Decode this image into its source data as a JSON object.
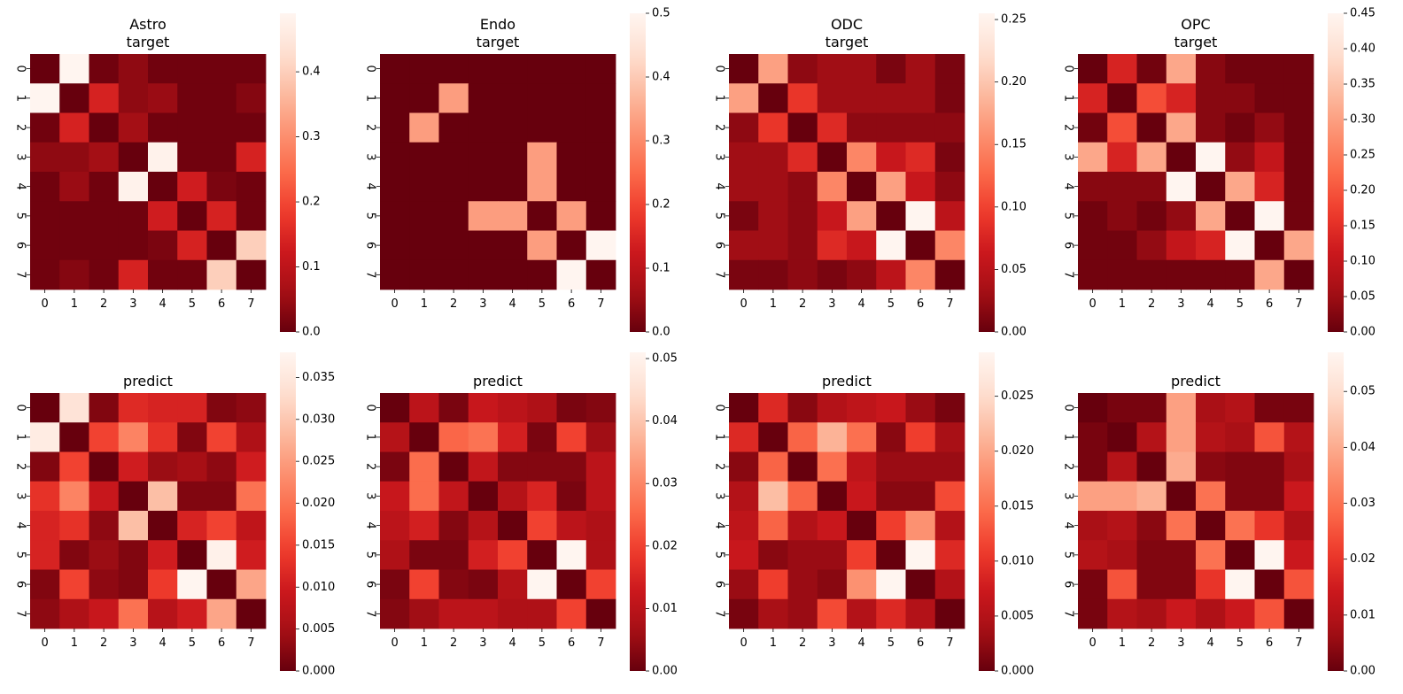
{
  "chart_data": [
    {
      "type": "heatmap",
      "title_lines": [
        "Astro",
        "target"
      ],
      "x_ticks": [
        "0",
        "1",
        "2",
        "3",
        "4",
        "5",
        "6",
        "7"
      ],
      "y_ticks": [
        "0",
        "1",
        "2",
        "3",
        "4",
        "5",
        "6",
        "7"
      ],
      "vmin": 0,
      "vmax": 0.49,
      "colorbar_ticks": [
        "0.0",
        "0.1",
        "0.2",
        "0.3",
        "0.4"
      ],
      "colorbar_values": [
        0,
        0.1,
        0.2,
        0.3,
        0.4
      ],
      "values": [
        [
          0.0,
          0.49,
          0.01,
          0.04,
          0.01,
          0.01,
          0.01,
          0.01
        ],
        [
          0.49,
          0.0,
          0.14,
          0.04,
          0.05,
          0.01,
          0.01,
          0.03
        ],
        [
          0.01,
          0.14,
          0.0,
          0.06,
          0.01,
          0.01,
          0.01,
          0.01
        ],
        [
          0.04,
          0.04,
          0.06,
          0.0,
          0.48,
          0.01,
          0.01,
          0.14
        ],
        [
          0.01,
          0.05,
          0.01,
          0.48,
          0.0,
          0.13,
          0.02,
          0.01
        ],
        [
          0.01,
          0.01,
          0.01,
          0.01,
          0.13,
          0.0,
          0.14,
          0.01
        ],
        [
          0.01,
          0.01,
          0.01,
          0.01,
          0.02,
          0.14,
          0.0,
          0.4
        ],
        [
          0.01,
          0.03,
          0.01,
          0.14,
          0.01,
          0.01,
          0.4,
          0.0
        ]
      ]
    },
    {
      "type": "heatmap",
      "title_lines": [
        "Endo",
        "target"
      ],
      "x_ticks": [
        "0",
        "1",
        "2",
        "3",
        "4",
        "5",
        "6",
        "7"
      ],
      "y_ticks": [
        "0",
        "1",
        "2",
        "3",
        "4",
        "5",
        "6",
        "7"
      ],
      "vmin": 0,
      "vmax": 0.5,
      "colorbar_ticks": [
        "0.0",
        "0.1",
        "0.2",
        "0.3",
        "0.4",
        "0.5"
      ],
      "colorbar_values": [
        0,
        0.1,
        0.2,
        0.3,
        0.4,
        0.5
      ],
      "values": [
        [
          0,
          0,
          0,
          0,
          0,
          0,
          0,
          0
        ],
        [
          0,
          0,
          0.33,
          0,
          0,
          0,
          0,
          0
        ],
        [
          0,
          0.33,
          0,
          0,
          0,
          0,
          0,
          0
        ],
        [
          0,
          0,
          0,
          0,
          0,
          0.33,
          0,
          0
        ],
        [
          0,
          0,
          0,
          0,
          0,
          0.33,
          0,
          0
        ],
        [
          0,
          0,
          0,
          0.33,
          0.33,
          0,
          0.33,
          0
        ],
        [
          0,
          0,
          0,
          0,
          0,
          0.33,
          0,
          0.5
        ],
        [
          0,
          0,
          0,
          0,
          0,
          0,
          0.5,
          0
        ]
      ]
    },
    {
      "type": "heatmap",
      "title_lines": [
        "ODC",
        "target"
      ],
      "x_ticks": [
        "0",
        "1",
        "2",
        "3",
        "4",
        "5",
        "6",
        "7"
      ],
      "y_ticks": [
        "0",
        "1",
        "2",
        "3",
        "4",
        "5",
        "6",
        "7"
      ],
      "vmin": 0,
      "vmax": 0.255,
      "colorbar_ticks": [
        "0.00",
        "0.05",
        "0.10",
        "0.15",
        "0.20",
        "0.25"
      ],
      "colorbar_values": [
        0,
        0.05,
        0.1,
        0.15,
        0.2,
        0.25
      ],
      "values": [
        [
          0.0,
          0.17,
          0.02,
          0.03,
          0.03,
          0.01,
          0.03,
          0.01
        ],
        [
          0.17,
          0.0,
          0.09,
          0.03,
          0.03,
          0.03,
          0.03,
          0.01
        ],
        [
          0.02,
          0.09,
          0.0,
          0.08,
          0.02,
          0.02,
          0.02,
          0.02
        ],
        [
          0.03,
          0.03,
          0.08,
          0.0,
          0.15,
          0.06,
          0.08,
          0.01
        ],
        [
          0.03,
          0.03,
          0.02,
          0.15,
          0.0,
          0.17,
          0.06,
          0.02
        ],
        [
          0.01,
          0.03,
          0.02,
          0.06,
          0.17,
          0.0,
          0.255,
          0.05
        ],
        [
          0.03,
          0.03,
          0.02,
          0.08,
          0.06,
          0.255,
          0.0,
          0.15
        ],
        [
          0.01,
          0.01,
          0.02,
          0.01,
          0.02,
          0.05,
          0.15,
          0.0
        ]
      ]
    },
    {
      "type": "heatmap",
      "title_lines": [
        "OPC",
        "target"
      ],
      "x_ticks": [
        "0",
        "1",
        "2",
        "3",
        "4",
        "5",
        "6",
        "7"
      ],
      "y_ticks": [
        "0",
        "1",
        "2",
        "3",
        "4",
        "5",
        "6",
        "7"
      ],
      "vmin": 0,
      "vmax": 0.45,
      "colorbar_ticks": [
        "0.00",
        "0.05",
        "0.10",
        "0.15",
        "0.20",
        "0.25",
        "0.30",
        "0.35",
        "0.40",
        "0.45"
      ],
      "colorbar_values": [
        0,
        0.05,
        0.1,
        0.15,
        0.2,
        0.25,
        0.3,
        0.35,
        0.4,
        0.45
      ],
      "values": [
        [
          0.0,
          0.13,
          0.01,
          0.31,
          0.03,
          0.01,
          0.01,
          0.01
        ],
        [
          0.13,
          0.0,
          0.19,
          0.13,
          0.03,
          0.03,
          0.01,
          0.01
        ],
        [
          0.01,
          0.19,
          0.0,
          0.31,
          0.03,
          0.01,
          0.04,
          0.01
        ],
        [
          0.31,
          0.13,
          0.31,
          0.0,
          0.45,
          0.04,
          0.1,
          0.01
        ],
        [
          0.03,
          0.03,
          0.03,
          0.45,
          0.0,
          0.31,
          0.13,
          0.01
        ],
        [
          0.01,
          0.03,
          0.01,
          0.04,
          0.31,
          0.0,
          0.45,
          0.01
        ],
        [
          0.01,
          0.01,
          0.04,
          0.1,
          0.13,
          0.45,
          0.0,
          0.31
        ],
        [
          0.01,
          0.01,
          0.01,
          0.01,
          0.01,
          0.01,
          0.31,
          0.0
        ]
      ]
    },
    {
      "type": "heatmap",
      "title_lines": [
        "predict"
      ],
      "x_ticks": [
        "0",
        "1",
        "2",
        "3",
        "4",
        "5",
        "6",
        "7"
      ],
      "y_ticks": [
        "0",
        "1",
        "2",
        "3",
        "4",
        "5",
        "6",
        "7"
      ],
      "vmin": 0,
      "vmax": 0.038,
      "colorbar_ticks": [
        "0.000",
        "0.005",
        "0.010",
        "0.015",
        "0.020",
        "0.025",
        "0.030",
        "0.035"
      ],
      "colorbar_values": [
        0,
        0.005,
        0.01,
        0.015,
        0.02,
        0.025,
        0.03,
        0.035
      ],
      "values": [
        [
          0.0,
          0.034,
          0.002,
          0.012,
          0.011,
          0.011,
          0.002,
          0.003
        ],
        [
          0.036,
          0.0,
          0.015,
          0.022,
          0.013,
          0.002,
          0.015,
          0.006
        ],
        [
          0.002,
          0.015,
          0.0,
          0.01,
          0.004,
          0.005,
          0.003,
          0.01
        ],
        [
          0.013,
          0.022,
          0.009,
          0.0,
          0.029,
          0.002,
          0.002,
          0.02
        ],
        [
          0.011,
          0.013,
          0.003,
          0.029,
          0.0,
          0.011,
          0.015,
          0.008
        ],
        [
          0.011,
          0.002,
          0.004,
          0.002,
          0.01,
          0.0,
          0.037,
          0.01
        ],
        [
          0.002,
          0.015,
          0.003,
          0.002,
          0.014,
          0.038,
          0.0,
          0.026
        ],
        [
          0.003,
          0.006,
          0.009,
          0.02,
          0.007,
          0.01,
          0.026,
          0.0
        ]
      ]
    },
    {
      "type": "heatmap",
      "title_lines": [
        "predict"
      ],
      "x_ticks": [
        "0",
        "1",
        "2",
        "3",
        "4",
        "5",
        "6",
        "7"
      ],
      "y_ticks": [
        "0",
        "1",
        "2",
        "3",
        "4",
        "5",
        "6",
        "7"
      ],
      "vmin": 0,
      "vmax": 0.051,
      "colorbar_ticks": [
        "0.00",
        "0.01",
        "0.02",
        "0.03",
        "0.04",
        "0.05"
      ],
      "colorbar_values": [
        0,
        0.01,
        0.02,
        0.03,
        0.04,
        0.05
      ],
      "values": [
        [
          0.0,
          0.01,
          0.002,
          0.012,
          0.01,
          0.008,
          0.002,
          0.003
        ],
        [
          0.009,
          0.0,
          0.025,
          0.027,
          0.014,
          0.002,
          0.02,
          0.006
        ],
        [
          0.002,
          0.026,
          0.0,
          0.011,
          0.003,
          0.003,
          0.003,
          0.01
        ],
        [
          0.012,
          0.026,
          0.011,
          0.0,
          0.009,
          0.015,
          0.002,
          0.01
        ],
        [
          0.01,
          0.014,
          0.003,
          0.009,
          0.0,
          0.02,
          0.01,
          0.008
        ],
        [
          0.008,
          0.002,
          0.002,
          0.014,
          0.02,
          0.0,
          0.051,
          0.008
        ],
        [
          0.002,
          0.02,
          0.003,
          0.002,
          0.009,
          0.051,
          0.0,
          0.02
        ],
        [
          0.003,
          0.006,
          0.01,
          0.01,
          0.008,
          0.008,
          0.02,
          0.0
        ]
      ]
    },
    {
      "type": "heatmap",
      "title_lines": [
        "predict"
      ],
      "x_ticks": [
        "0",
        "1",
        "2",
        "3",
        "4",
        "5",
        "6",
        "7"
      ],
      "y_ticks": [
        "0",
        "1",
        "2",
        "3",
        "4",
        "5",
        "6",
        "7"
      ],
      "vmin": 0,
      "vmax": 0.029,
      "colorbar_ticks": [
        "0.000",
        "0.005",
        "0.010",
        "0.015",
        "0.020",
        "0.025"
      ],
      "colorbar_values": [
        0,
        0.005,
        0.01,
        0.015,
        0.02,
        0.025
      ],
      "values": [
        [
          0.0,
          0.009,
          0.002,
          0.005,
          0.006,
          0.007,
          0.003,
          0.001
        ],
        [
          0.009,
          0.0,
          0.014,
          0.021,
          0.015,
          0.002,
          0.011,
          0.004
        ],
        [
          0.002,
          0.014,
          0.0,
          0.015,
          0.006,
          0.003,
          0.003,
          0.003
        ],
        [
          0.005,
          0.022,
          0.014,
          0.0,
          0.007,
          0.002,
          0.002,
          0.012
        ],
        [
          0.006,
          0.014,
          0.005,
          0.007,
          0.0,
          0.011,
          0.018,
          0.005
        ],
        [
          0.007,
          0.002,
          0.003,
          0.003,
          0.011,
          0.0,
          0.029,
          0.009
        ],
        [
          0.003,
          0.011,
          0.003,
          0.002,
          0.018,
          0.029,
          0.0,
          0.005
        ],
        [
          0.001,
          0.004,
          0.003,
          0.012,
          0.005,
          0.009,
          0.005,
          0.0
        ]
      ]
    },
    {
      "type": "heatmap",
      "title_lines": [
        "predict"
      ],
      "x_ticks": [
        "0",
        "1",
        "2",
        "3",
        "4",
        "5",
        "6",
        "7"
      ],
      "y_ticks": [
        "0",
        "1",
        "2",
        "3",
        "4",
        "5",
        "6",
        "7"
      ],
      "vmin": 0,
      "vmax": 0.057,
      "colorbar_ticks": [
        "0.00",
        "0.01",
        "0.02",
        "0.03",
        "0.04",
        "0.05"
      ],
      "colorbar_values": [
        0,
        0.01,
        0.02,
        0.03,
        0.04,
        0.05
      ],
      "values": [
        [
          0.0,
          0.002,
          0.002,
          0.038,
          0.008,
          0.01,
          0.002,
          0.002
        ],
        [
          0.002,
          0.0,
          0.01,
          0.038,
          0.01,
          0.008,
          0.025,
          0.01
        ],
        [
          0.002,
          0.01,
          0.0,
          0.04,
          0.004,
          0.003,
          0.003,
          0.008
        ],
        [
          0.038,
          0.038,
          0.041,
          0.0,
          0.03,
          0.003,
          0.003,
          0.014
        ],
        [
          0.008,
          0.01,
          0.004,
          0.03,
          0.0,
          0.03,
          0.02,
          0.009
        ],
        [
          0.01,
          0.008,
          0.003,
          0.003,
          0.03,
          0.0,
          0.057,
          0.014
        ],
        [
          0.002,
          0.025,
          0.003,
          0.003,
          0.02,
          0.057,
          0.0,
          0.025
        ],
        [
          0.002,
          0.01,
          0.008,
          0.014,
          0.009,
          0.014,
          0.025,
          0.0
        ]
      ]
    }
  ]
}
